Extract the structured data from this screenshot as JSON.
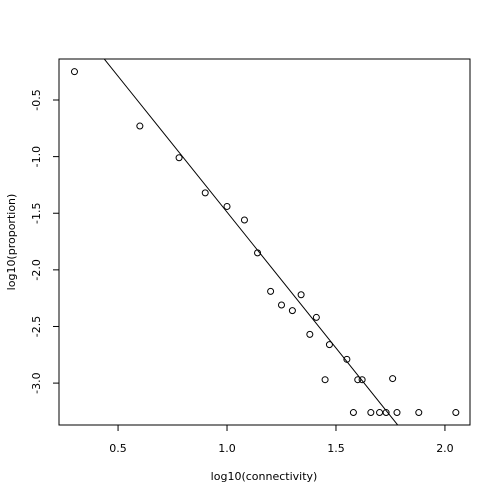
{
  "chart_data": {
    "type": "scatter",
    "xlabel": "log10(connectivity)",
    "ylabel": "log10(proportion)",
    "x": [
      0.3,
      0.6,
      0.78,
      0.9,
      1.0,
      1.08,
      1.14,
      1.2,
      1.25,
      1.3,
      1.34,
      1.41,
      1.38,
      1.47,
      1.45,
      1.55,
      1.6,
      1.62,
      1.76,
      1.58,
      1.66,
      1.7,
      1.73,
      1.78,
      1.88,
      2.05
    ],
    "values": [
      -0.25,
      -0.73,
      -1.01,
      -1.32,
      -1.44,
      -1.56,
      -1.85,
      -2.19,
      -2.31,
      -2.36,
      -2.22,
      -2.42,
      -2.57,
      -2.66,
      -2.97,
      -2.79,
      -2.97,
      -2.97,
      -2.96,
      -3.26,
      -3.26,
      -3.26,
      -3.26,
      -3.26,
      -3.26,
      -3.26
    ],
    "color": "#000000",
    "fit": {
      "intercept": 0.91,
      "slope": -2.4
    },
    "xlim": [
      0.229,
      2.115
    ],
    "ylim": [
      -3.37,
      -0.138
    ],
    "xticks": [
      0.5,
      {
        "value": 1,
        "label": "1.0"
      },
      1.5,
      {
        "value": 2,
        "label": "2.0"
      }
    ],
    "yticks": [
      -0.5,
      {
        "value": -1,
        "label": "-1.0"
      },
      -1.5,
      {
        "value": -2,
        "label": "-2.0"
      },
      -2.5,
      {
        "value": -3,
        "label": "-3.0"
      }
    ]
  }
}
